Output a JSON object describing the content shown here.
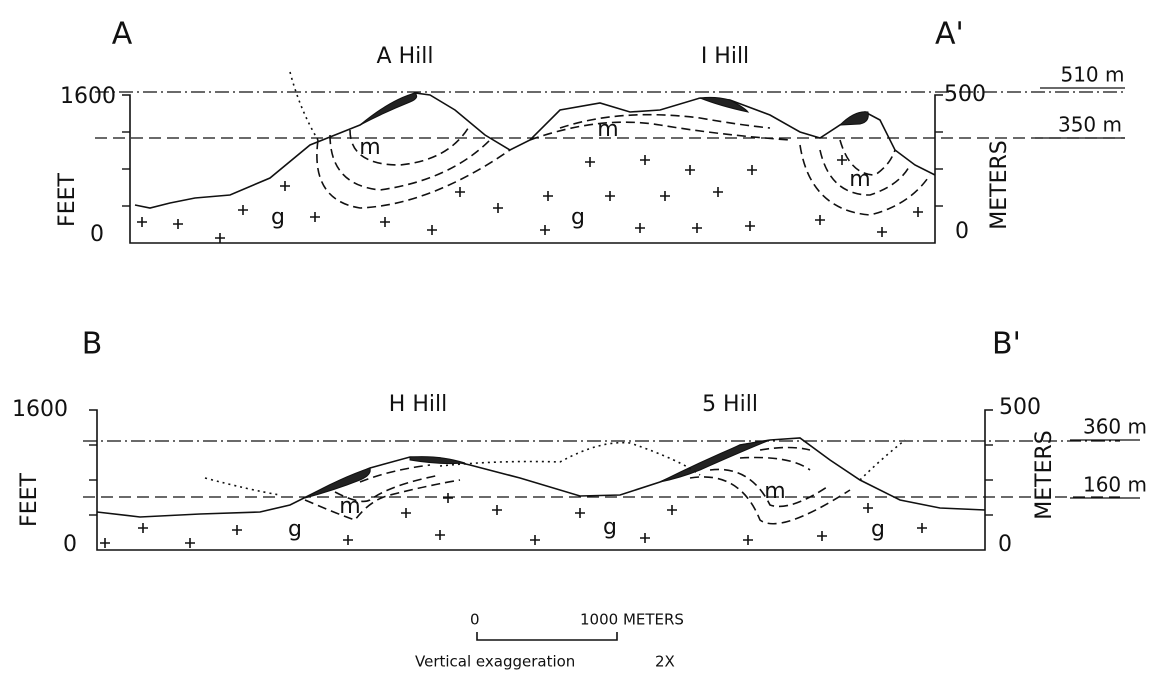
{
  "sections": [
    {
      "label_left": "A",
      "label_right": "A'",
      "hills": [
        "A Hill",
        "I Hill"
      ],
      "left_axis": {
        "label": "FEET",
        "ticks": [
          "1600",
          "0"
        ]
      },
      "right_axis": {
        "label": "METERS",
        "ticks": [
          "500",
          "0"
        ]
      },
      "levels": [
        "510 m",
        "350 m"
      ],
      "rock_labels": [
        "m",
        "m",
        "m",
        "g",
        "g"
      ]
    },
    {
      "label_left": "B",
      "label_right": "B'",
      "hills": [
        "H Hill",
        "5 Hill"
      ],
      "left_axis": {
        "label": "FEET",
        "ticks": [
          "1600",
          "0"
        ]
      },
      "right_axis": {
        "label": "METERS",
        "ticks": [
          "500",
          "0"
        ]
      },
      "levels": [
        "360 m",
        "160 m"
      ],
      "rock_labels": [
        "m",
        "m",
        "g",
        "g",
        "g"
      ]
    }
  ],
  "scale": {
    "start": "0",
    "end": "1000 METERS",
    "note": "Vertical exaggeration",
    "exaggeration": "2X"
  }
}
